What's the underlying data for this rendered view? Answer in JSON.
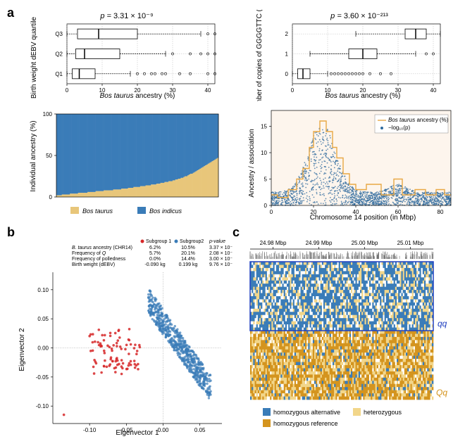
{
  "panel_a": {
    "label": "a",
    "boxplot_left": {
      "title_prefix": "p = ",
      "title_value": "3.31 × 10⁻⁹",
      "ylabel": "Birth weight dEBV quartile",
      "xlabel": "Bos taurus ancestry (%)",
      "xlim": [
        0,
        42
      ],
      "xticks": [
        0,
        10,
        20,
        30,
        40
      ],
      "categories": [
        "Q1",
        "Q2",
        "Q3"
      ],
      "boxes": [
        {
          "min": 0,
          "q1": 1.5,
          "med": 3.5,
          "q3": 8,
          "max": 18,
          "outliers": [
            20,
            22,
            24,
            25,
            27,
            28,
            32,
            35,
            40,
            42
          ]
        },
        {
          "min": 0,
          "q1": 2.5,
          "med": 5,
          "q3": 15,
          "max": 28,
          "outliers": [
            30,
            35,
            38,
            40,
            42
          ]
        },
        {
          "min": 0,
          "q1": 3,
          "med": 9,
          "q3": 20,
          "max": 38,
          "outliers": [
            40,
            42
          ]
        }
      ]
    },
    "boxplot_right": {
      "title_prefix": "p = ",
      "title_value": "3.60 × 10⁻²¹³",
      "ylabel": "Number of copies of GGGGTTC (Q)",
      "xlabel": "Bos taurus ancestry (%)",
      "xlim": [
        0,
        42
      ],
      "xticks": [
        0,
        10,
        20,
        30,
        40
      ],
      "categories": [
        "0",
        "1",
        "2"
      ],
      "boxes": [
        {
          "min": 0,
          "q1": 1.5,
          "med": 3,
          "q3": 5,
          "max": 10,
          "outliers": [
            11,
            12,
            13,
            14,
            15,
            16,
            17,
            18,
            19,
            20,
            22,
            25,
            28
          ]
        },
        {
          "min": 5,
          "q1": 16,
          "med": 20,
          "q3": 24,
          "max": 35,
          "outliers": [
            38,
            40
          ]
        },
        {
          "min": 18,
          "q1": 32,
          "med": 35,
          "q3": 38,
          "max": 42,
          "outliers": []
        }
      ]
    },
    "stacked_bar": {
      "ylabel": "Individual ancestry (%)",
      "yticks": [
        0,
        50,
        100
      ],
      "legend": {
        "taurus": "Bos taurus",
        "indicus": "Bos indicus"
      },
      "colors": {
        "taurus": "#e8c67a",
        "indicus": "#3a7cb8"
      },
      "n_individuals": 120,
      "taurus_fractions": [
        2,
        2,
        2,
        2,
        3,
        3,
        3,
        3,
        3,
        3,
        4,
        4,
        4,
        4,
        4,
        4,
        5,
        5,
        5,
        5,
        5,
        5,
        5,
        6,
        6,
        6,
        6,
        6,
        6,
        7,
        7,
        7,
        7,
        7,
        7,
        8,
        8,
        8,
        8,
        8,
        8,
        8,
        9,
        9,
        9,
        9,
        9,
        9,
        10,
        10,
        10,
        10,
        10,
        11,
        11,
        11,
        11,
        12,
        12,
        12,
        12,
        12,
        13,
        13,
        13,
        13,
        14,
        14,
        14,
        14,
        15,
        15,
        15,
        15,
        16,
        16,
        16,
        17,
        17,
        17,
        18,
        18,
        18,
        19,
        19,
        19,
        20,
        20,
        21,
        21,
        22,
        22,
        23,
        23,
        24,
        25,
        25,
        26,
        27,
        28,
        28,
        29,
        30,
        31,
        32,
        33,
        34,
        35,
        36,
        37,
        38,
        39,
        40,
        41,
        42,
        43,
        44,
        45,
        46,
        47
      ]
    },
    "manhattan": {
      "ylabel": "Ancestry / association",
      "xlabel": "Chromosome 14 position (in Mbp)",
      "xlim": [
        0,
        85
      ],
      "xticks": [
        0,
        20,
        40,
        60,
        80
      ],
      "ylim": [
        0,
        18
      ],
      "yticks": [
        0,
        5,
        10,
        15
      ],
      "legend": {
        "line": "Bos taurus ancestry (%)",
        "dots": "−log₁₀(p)"
      },
      "line_color": "#e8a845",
      "dot_color": "#2d6a9e",
      "bg_color": "#fdf5ed"
    }
  },
  "panel_b": {
    "label": "b",
    "xlabel": "Eigenvector 1",
    "ylabel": "Eigenvector 2",
    "xlim": [
      -0.15,
      0.08
    ],
    "ylim": [
      -0.13,
      0.13
    ],
    "xticks": [
      -0.1,
      -0.05,
      0.0,
      0.05
    ],
    "yticks": [
      -0.1,
      -0.05,
      0.0,
      0.05,
      0.1
    ],
    "colors": {
      "sub1": "#d62728",
      "sub2": "#3a7cb8"
    },
    "legend": {
      "sub1": "Subgroup 1",
      "sub2": "Subgroup2"
    },
    "table": {
      "headers": [
        "",
        "Subgroup 1",
        "Subgroup2",
        "p-value"
      ],
      "rows": [
        [
          "B. taurus ancestry (CHR14)",
          "6.2%",
          "10.5%",
          "3.37 × 10⁻⁴"
        ],
        [
          "Frequency of Q",
          "5.7%",
          "20.1%",
          "2.08 × 10⁻⁸"
        ],
        [
          "Frequency of polledness",
          "0.0%",
          "14.4%",
          "3.00 × 10⁻²"
        ],
        [
          "Birth weight (dEBV)",
          "-0.090 kg",
          "0.199 kg",
          "9.76 × 10⁻³"
        ]
      ]
    }
  },
  "panel_c": {
    "label": "c",
    "xticks": [
      "24.98 Mbp",
      "24.99 Mbp",
      "25.00 Mbp",
      "25.01 Mbp"
    ],
    "legend": {
      "hom_alt": "homozygous alternative",
      "het": "heterozygous",
      "hom_ref": "homozygous reference"
    },
    "colors": {
      "hom_alt": "#3a7cb8",
      "het": "#f2d68a",
      "hom_ref": "#d4941e",
      "qq_box": "#2040c0",
      "Qq_label": "#d4941e"
    },
    "labels": {
      "qq": "qq",
      "Qq": "Qq"
    }
  }
}
